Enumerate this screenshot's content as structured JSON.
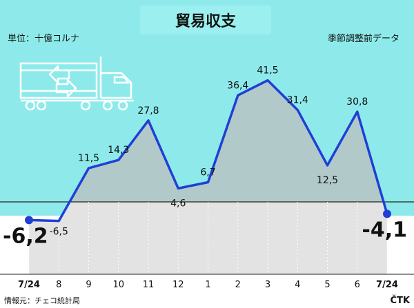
{
  "header": {
    "title": "貿易収支",
    "unit": "単位：十億コルナ",
    "note": "季節調整前データ"
  },
  "footer": {
    "source": "情報元：チェコ統計局",
    "agency": "ČTK"
  },
  "colors": {
    "background_upper": "#8eeaea",
    "background_lower": "#ffffff",
    "fill_positive": "#bdbdbd",
    "fill_negative": "#e3e3e3",
    "line": "#1f3fd6",
    "text": "#111111"
  },
  "icons": [
    "truck-icon",
    "exchange-arrows-icon"
  ],
  "chart_data": {
    "type": "area",
    "title": "貿易収支",
    "ylabel": "単位：十億コルナ",
    "xlabel": "",
    "categories": [
      "7/24",
      "8",
      "9",
      "10",
      "11",
      "12",
      "1",
      "2",
      "3",
      "4",
      "5",
      "6",
      "7/24"
    ],
    "values": [
      -6.2,
      -6.5,
      11.5,
      14.3,
      27.8,
      4.6,
      6.7,
      36.4,
      41.5,
      31.4,
      12.5,
      30.8,
      -4.1
    ],
    "value_labels": [
      "-6,2",
      "-6,5",
      "11,5",
      "14,3",
      "27,8",
      "4,6",
      "6,7",
      "36,4",
      "41,5",
      "31,4",
      "12,5",
      "30,8",
      "-4,1"
    ],
    "highlighted_indices": [
      0,
      12
    ],
    "zero_line": true,
    "grid": false,
    "legend": "none"
  }
}
